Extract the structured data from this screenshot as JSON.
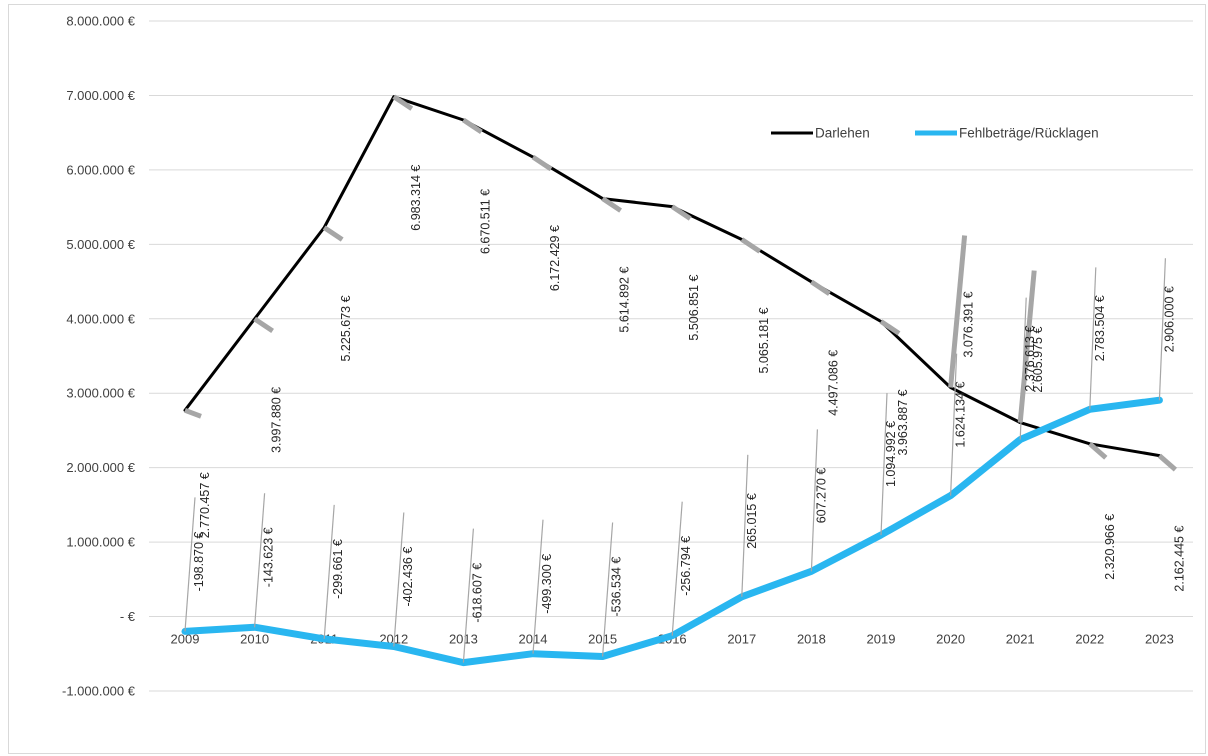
{
  "chart_data": {
    "type": "line",
    "categories": [
      "2009",
      "2010",
      "2011",
      "2012",
      "2013",
      "2014",
      "2015",
      "2016",
      "2017",
      "2018",
      "2019",
      "2020",
      "2021",
      "2022",
      "2023"
    ],
    "series": [
      {
        "name": "Darlehen",
        "color": "#000000",
        "values": [
          2770457,
          3997880,
          5225673,
          6983314,
          6670511,
          6172429,
          5614892,
          5506851,
          5065181,
          4497086,
          3963887,
          3076391,
          2605975,
          2320966,
          2162445
        ],
        "labels": [
          "2.770.457 €",
          "3.997.880 €",
          "5.225.673 €",
          "6.983.314 €",
          "6.670.511 €",
          "6.172.429 €",
          "5.614.892 €",
          "5.506.851 €",
          "5.065.181 €",
          "4.497.086 €",
          "3.963.887 €",
          "3.076.391 €",
          "2.605.975 €",
          "2.320.966 €",
          "2.162.445 €"
        ]
      },
      {
        "name": "Fehlbeträge/Rücklagen",
        "color": "#29b6f0",
        "values": [
          -198870,
          -143623,
          -299661,
          -402436,
          -618607,
          -499300,
          -536534,
          -256794,
          265015,
          607270,
          1094992,
          1624134,
          2376613,
          2783504,
          2906000
        ],
        "labels": [
          "-198.870 €",
          "-143.623 €",
          "-299.661 €",
          "-402.436 €",
          "-618.607 €",
          "-499.300 €",
          "-536.534 €",
          "-256.794 €",
          "265.015 €",
          "607.270 €",
          "1.094.992 €",
          "1.624.134 €",
          "2.376.613 €",
          "2.783.504 €",
          "2.906.000 €"
        ]
      }
    ],
    "ylim": [
      -1000000,
      8000000
    ],
    "yticks": [
      8000000,
      7000000,
      6000000,
      5000000,
      4000000,
      3000000,
      2000000,
      1000000,
      0,
      -1000000
    ],
    "ytick_labels": [
      "8.000.000 €",
      "7.000.000 €",
      "6.000.000 €",
      "5.000.000 €",
      "4.000.000 €",
      "3.000.000 €",
      "2.000.000 €",
      "1.000.000 €",
      "-   €",
      "-1.000.000 €"
    ],
    "grid": true,
    "legend_position": "top-right",
    "title": "",
    "xlabel": "",
    "ylabel": "",
    "leader_line_color": "#a6a6a6",
    "grid_color": "#d9d9d9"
  }
}
